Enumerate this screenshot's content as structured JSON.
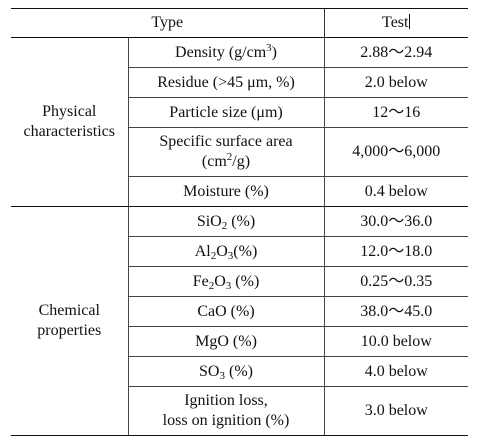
{
  "table": {
    "headers": [
      "Type",
      "Test"
    ],
    "groups": [
      {
        "category": "Physical characteristics",
        "rows": [
          {
            "property": "Density (g/cm3)",
            "test": "2.88～2.94"
          },
          {
            "property": "Residue (>45 μm, %)",
            "test": "2.0 below"
          },
          {
            "property": "Particle size (μm)",
            "test": "12～16"
          },
          {
            "property": "Specific surface area (cm2/g)",
            "test": "4,000～6,000"
          },
          {
            "property": "Moisture (%)",
            "test": "0.4 below"
          }
        ]
      },
      {
        "category": "Chemical properties",
        "rows": [
          {
            "property": "SiO2 (%)",
            "test": "30.0～36.0"
          },
          {
            "property": "Al2O3(%)",
            "test": "12.0～18.0"
          },
          {
            "property": "Fe2O3 (%)",
            "test": "0.25～0.35"
          },
          {
            "property": "CaO (%)",
            "test": "38.0～45.0"
          },
          {
            "property": "MgO (%)",
            "test": "10.0 below"
          },
          {
            "property": "SO3 (%)",
            "test": "4.0 below"
          },
          {
            "property": "Ignition loss, loss on ignition (%)",
            "test": "3.0 below"
          }
        ]
      }
    ]
  }
}
